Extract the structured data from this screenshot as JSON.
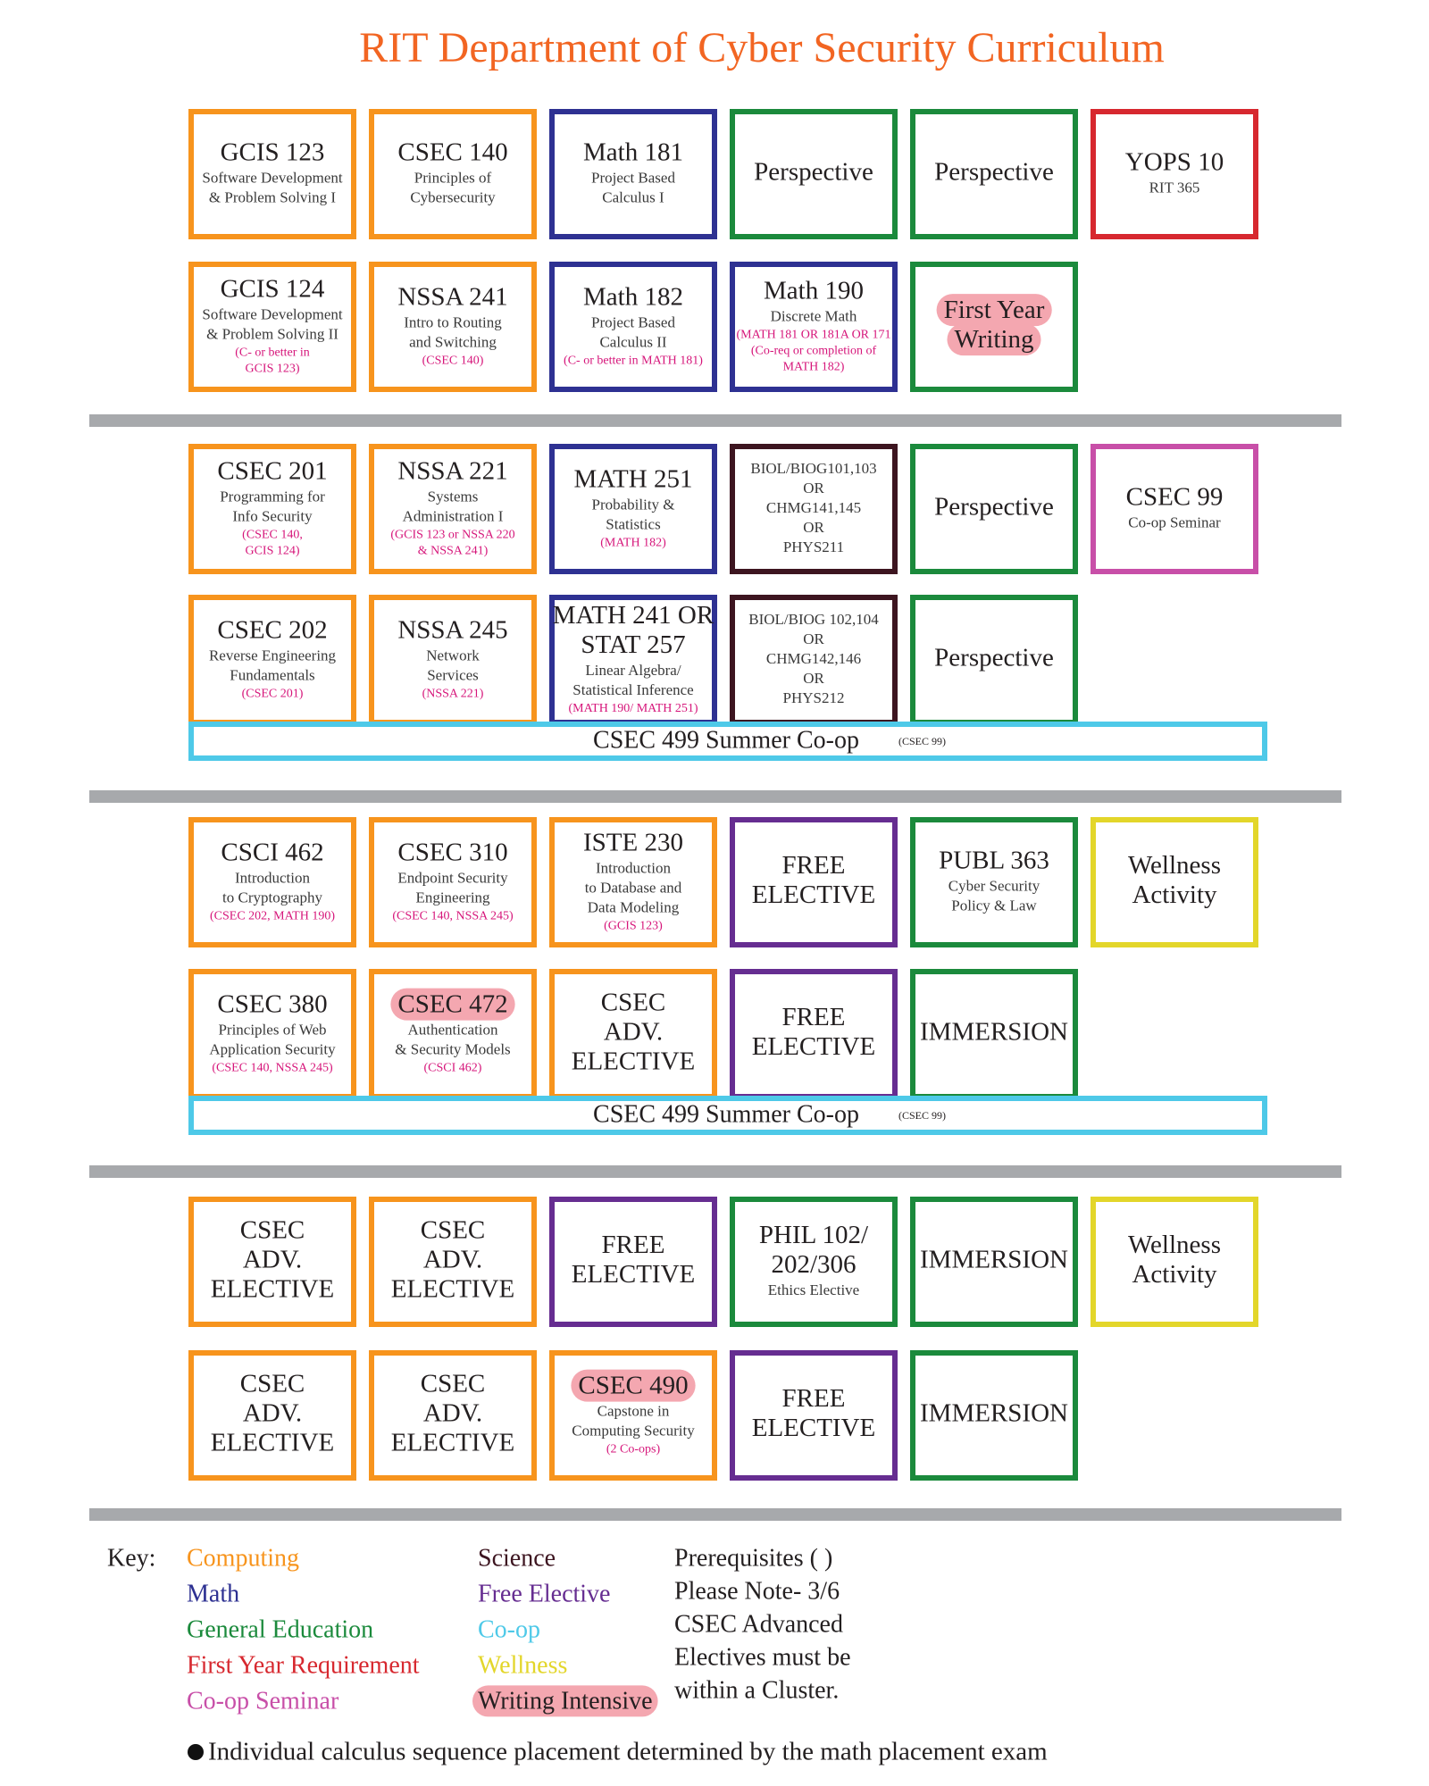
{
  "title": "RIT Department of Cyber Security Curriculum",
  "years": [
    {
      "rows": [
        [
          {
            "color": "#f7941d",
            "title": [
              "GCIS 123"
            ],
            "text": [
              "Software Development",
              "& Problem Solving I"
            ],
            "prereq": []
          },
          {
            "color": "#f7941d",
            "title": [
              "CSEC 140"
            ],
            "text": [
              "Principles of",
              "Cybersecurity"
            ],
            "prereq": []
          },
          {
            "color": "#2e3192",
            "title": [
              "Math 181"
            ],
            "text": [
              "Project Based",
              "Calculus I"
            ],
            "prereq": []
          },
          {
            "color": "#1b8a3c",
            "title": [
              "Perspective"
            ],
            "text": [],
            "prereq": []
          },
          {
            "color": "#1b8a3c",
            "title": [
              "Perspective"
            ],
            "text": [],
            "prereq": []
          },
          {
            "color": "#d7282f",
            "title": [
              "YOPS 10"
            ],
            "text": [
              "RIT 365"
            ],
            "prereq": []
          }
        ],
        [
          {
            "color": "#f7941d",
            "title": [
              "GCIS 124"
            ],
            "text": [
              "Software Development",
              "& Problem Solving II"
            ],
            "prereq": [
              "(C- or better in",
              "GCIS 123)"
            ]
          },
          {
            "color": "#f7941d",
            "title": [
              "NSSA 241"
            ],
            "text": [
              "Intro to Routing",
              "and Switching"
            ],
            "prereq": [
              "(CSEC 140)"
            ]
          },
          {
            "color": "#2e3192",
            "title": [
              "Math 182"
            ],
            "text": [
              "Project Based",
              "Calculus II"
            ],
            "prereq": [
              "(C- or better in MATH 181)"
            ]
          },
          {
            "color": "#2e3192",
            "title": [
              "Math 190"
            ],
            "text": [
              "Discrete Math"
            ],
            "prereq": [
              "(MATH 181 OR 181A OR 171",
              "(Co-req or completion of",
              "MATH 182)"
            ]
          },
          {
            "color": "#1b8a3c",
            "title": [
              "First Year",
              "Writing"
            ],
            "text": [],
            "prereq": [],
            "writing_intensive": true
          }
        ]
      ]
    },
    {
      "rows": [
        [
          {
            "color": "#f7941d",
            "title": [
              "CSEC 201"
            ],
            "text": [
              "Programming for",
              "Info Security"
            ],
            "prereq": [
              "(CSEC 140,",
              "GCIS 124)"
            ]
          },
          {
            "color": "#f7941d",
            "title": [
              "NSSA 221"
            ],
            "text": [
              "Systems",
              "Administration I"
            ],
            "prereq": [
              "(GCIS 123 or NSSA 220",
              "& NSSA 241)"
            ]
          },
          {
            "color": "#2e3192",
            "title": [
              "MATH 251"
            ],
            "text": [
              "Probability &",
              "Statistics"
            ],
            "prereq": [
              "(MATH 182)"
            ]
          },
          {
            "color": "#3d1520",
            "title": [],
            "text": [
              "BIOL/BIOG101,103",
              "OR",
              "CHMG141,145",
              "OR",
              "PHYS211"
            ],
            "prereq": []
          },
          {
            "color": "#1b8a3c",
            "title": [
              "Perspective"
            ],
            "text": [],
            "prereq": []
          },
          {
            "color": "#c84fa8",
            "title": [
              "CSEC 99"
            ],
            "text": [
              "Co-op Seminar"
            ],
            "prereq": []
          }
        ],
        [
          {
            "color": "#f7941d",
            "title": [
              "CSEC 202"
            ],
            "text": [
              "Reverse Engineering",
              "Fundamentals"
            ],
            "prereq": [
              "(CSEC 201)"
            ]
          },
          {
            "color": "#f7941d",
            "title": [
              "NSSA 245"
            ],
            "text": [
              "Network",
              "Services"
            ],
            "prereq": [
              "(NSSA 221)"
            ]
          },
          {
            "color": "#2e3192",
            "title": [
              "MATH 241 OR",
              "STAT 257"
            ],
            "text": [
              "Linear Algebra/",
              "Statistical Inference"
            ],
            "prereq": [
              "(MATH 190/ MATH 251)"
            ]
          },
          {
            "color": "#3d1520",
            "title": [],
            "text": [
              "BIOL/BIOG 102,104",
              "OR",
              "CHMG142,146",
              "OR",
              "PHYS212"
            ],
            "prereq": []
          },
          {
            "color": "#1b8a3c",
            "title": [
              "Perspective"
            ],
            "text": [],
            "prereq": []
          }
        ]
      ],
      "coop": {
        "text": "CSEC 499 Summer Co-op",
        "prereq": "(CSEC 99)",
        "color": "#4ec9e8"
      }
    },
    {
      "rows": [
        [
          {
            "color": "#f7941d",
            "title": [
              "CSCI 462"
            ],
            "text": [
              "Introduction",
              "to Cryptography"
            ],
            "prereq": [
              "(CSEC 202, MATH 190)"
            ]
          },
          {
            "color": "#f7941d",
            "title": [
              "CSEC 310"
            ],
            "text": [
              "Endpoint Security",
              "Engineering"
            ],
            "prereq": [
              "(CSEC 140, NSSA 245)"
            ]
          },
          {
            "color": "#f7941d",
            "title": [
              "ISTE 230"
            ],
            "text": [
              "Introduction",
              "to Database and",
              "Data Modeling"
            ],
            "prereq": [
              "(GCIS 123)"
            ]
          },
          {
            "color": "#662d91",
            "title": [
              "FREE",
              "ELECTIVE"
            ],
            "text": [],
            "prereq": []
          },
          {
            "color": "#1b8a3c",
            "title": [
              "PUBL 363"
            ],
            "text": [
              "Cyber Security",
              "Policy & Law"
            ],
            "prereq": []
          },
          {
            "color": "#e3d62a",
            "title": [
              "Wellness",
              "Activity"
            ],
            "text": [],
            "prereq": []
          }
        ],
        [
          {
            "color": "#f7941d",
            "title": [
              "CSEC 380"
            ],
            "text": [
              "Principles of Web",
              "Application Security"
            ],
            "prereq": [
              "(CSEC 140, NSSA 245)"
            ]
          },
          {
            "color": "#f7941d",
            "title": [
              "CSEC 472"
            ],
            "text": [
              "Authentication",
              "& Security Models"
            ],
            "prereq": [
              "(CSCI 462)"
            ],
            "writing_intensive": true
          },
          {
            "color": "#f7941d",
            "title": [
              "CSEC",
              "ADV.",
              "ELECTIVE"
            ],
            "text": [],
            "prereq": []
          },
          {
            "color": "#662d91",
            "title": [
              "FREE",
              "ELECTIVE"
            ],
            "text": [],
            "prereq": []
          },
          {
            "color": "#1b8a3c",
            "title": [
              "IMMERSION"
            ],
            "text": [],
            "prereq": []
          }
        ]
      ],
      "coop": {
        "text": "CSEC 499 Summer Co-op",
        "prereq": "(CSEC 99)",
        "color": "#4ec9e8"
      }
    },
    {
      "rows": [
        [
          {
            "color": "#f7941d",
            "title": [
              "CSEC",
              "ADV.",
              "ELECTIVE"
            ],
            "text": [],
            "prereq": []
          },
          {
            "color": "#f7941d",
            "title": [
              "CSEC",
              "ADV.",
              "ELECTIVE"
            ],
            "text": [],
            "prereq": []
          },
          {
            "color": "#662d91",
            "title": [
              "FREE",
              "ELECTIVE"
            ],
            "text": [],
            "prereq": []
          },
          {
            "color": "#1b8a3c",
            "title": [
              "PHIL 102/",
              "202/306"
            ],
            "text": [
              "Ethics Elective"
            ],
            "prereq": []
          },
          {
            "color": "#1b8a3c",
            "title": [
              "IMMERSION"
            ],
            "text": [],
            "prereq": []
          },
          {
            "color": "#e3d62a",
            "title": [
              "Wellness",
              "Activity"
            ],
            "text": [],
            "prereq": []
          }
        ],
        [
          {
            "color": "#f7941d",
            "title": [
              "CSEC",
              "ADV.",
              "ELECTIVE"
            ],
            "text": [],
            "prereq": []
          },
          {
            "color": "#f7941d",
            "title": [
              "CSEC",
              "ADV.",
              "ELECTIVE"
            ],
            "text": [],
            "prereq": []
          },
          {
            "color": "#f7941d",
            "title": [
              "CSEC 490"
            ],
            "text": [
              "Capstone in",
              "Computing Security"
            ],
            "prereq": [
              "(2 Co-ops)"
            ],
            "writing_intensive": true
          },
          {
            "color": "#662d91",
            "title": [
              "FREE",
              "ELECTIVE"
            ],
            "text": [],
            "prereq": []
          },
          {
            "color": "#1b8a3c",
            "title": [
              "IMMERSION"
            ],
            "text": [],
            "prereq": []
          }
        ]
      ]
    }
  ],
  "key": {
    "label": "Key:",
    "items": [
      {
        "text": "Computing",
        "color": "#f7941d"
      },
      {
        "text": "Math",
        "color": "#2e3192"
      },
      {
        "text": "General Education",
        "color": "#1b8a3c"
      },
      {
        "text": "First Year Requirement",
        "color": "#d7282f"
      },
      {
        "text": "Co-op Seminar",
        "color": "#c84fa8"
      },
      {
        "text": "Science",
        "color": "#3d1520"
      },
      {
        "text": "Free Elective",
        "color": "#662d91"
      },
      {
        "text": "Co-op",
        "color": "#4ec9e8"
      },
      {
        "text": "Wellness",
        "color": "#e3d62a"
      },
      {
        "text": "Writing Intensive",
        "color": "#231f20",
        "writing_intensive": true
      }
    ],
    "notes": [
      "Prerequisites ( )",
      "Please Note- 3/6",
      "CSEC Advanced",
      "Electives must be",
      "within a Cluster."
    ]
  },
  "footnote": "Individual calculus sequence placement determined by the math placement exam"
}
